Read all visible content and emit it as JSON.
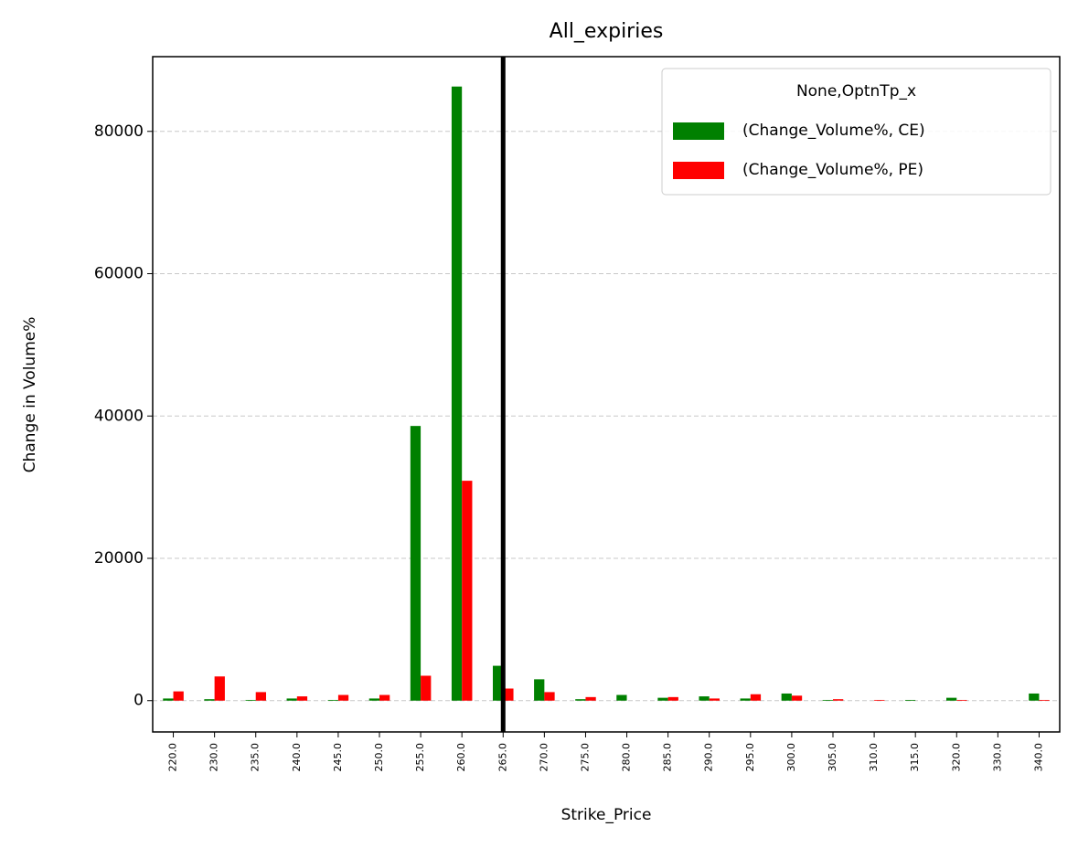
{
  "chart_data": {
    "type": "bar",
    "title": "All_expiries",
    "x_label": "Strike_Price",
    "y_label": "Change in Volume%",
    "categories": [
      "220.0",
      "230.0",
      "235.0",
      "240.0",
      "245.0",
      "250.0",
      "255.0",
      "260.0",
      "265.0",
      "270.0",
      "275.0",
      "280.0",
      "285.0",
      "290.0",
      "295.0",
      "300.0",
      "305.0",
      "310.0",
      "315.0",
      "320.0",
      "330.0",
      "340.0"
    ],
    "series": [
      {
        "name": "(Change_Volume%, CE)",
        "color": "#008000",
        "values": [
          300,
          200,
          100,
          300,
          100,
          300,
          38600,
          86300,
          4900,
          3000,
          200,
          800,
          400,
          600,
          300,
          1000,
          100,
          0,
          100,
          400,
          0,
          1000
        ]
      },
      {
        "name": "(Change_Volume%, PE)",
        "color": "#ff0000",
        "values": [
          1300,
          3400,
          1200,
          600,
          800,
          800,
          3500,
          30900,
          1700,
          1200,
          500,
          0,
          500,
          300,
          900,
          700,
          200,
          100,
          0,
          100,
          0,
          100
        ]
      }
    ],
    "vline_category": "265.0",
    "vline_color": "#000000",
    "ylim": [
      -4400,
      90500
    ],
    "yticks": [
      0,
      20000,
      40000,
      60000,
      80000
    ],
    "grid": true,
    "legend_title": "None,OptnTp_x",
    "legend_position": "upper right"
  }
}
